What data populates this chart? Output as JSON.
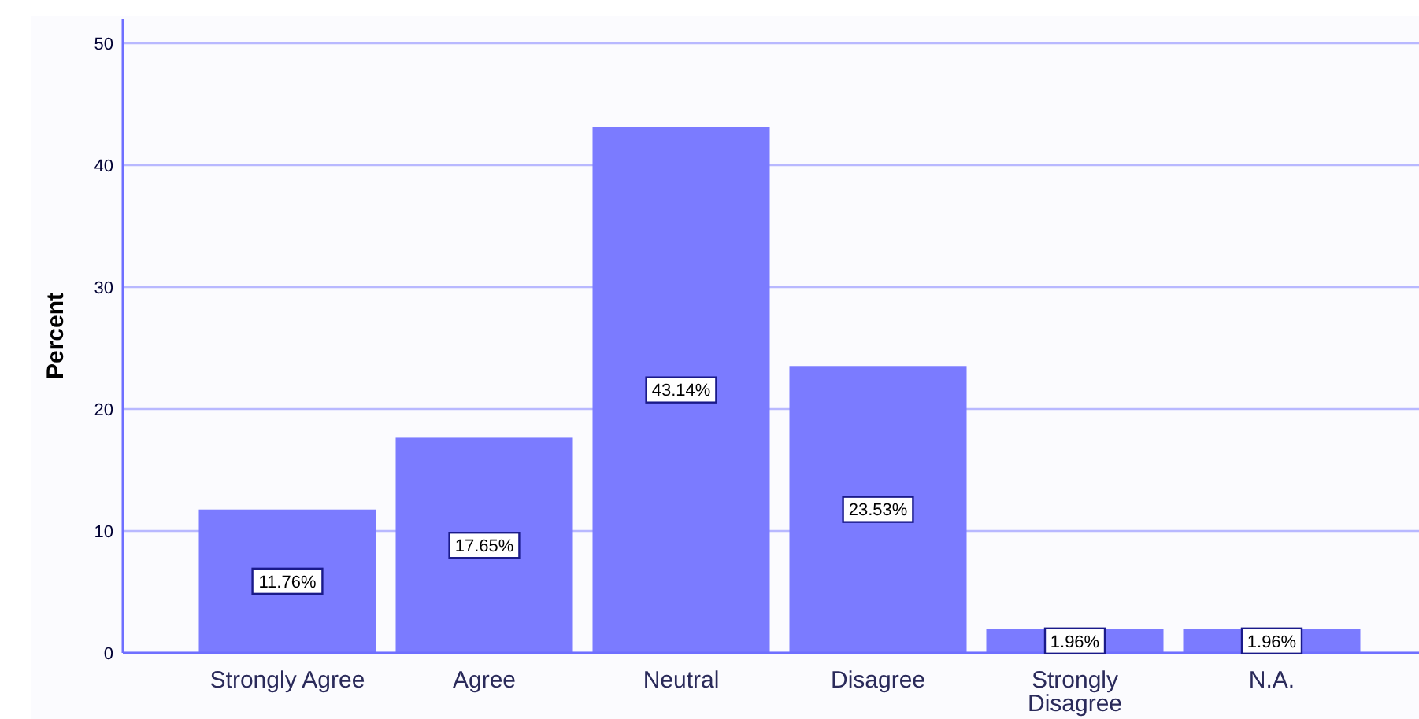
{
  "chart_data": {
    "type": "bar",
    "ylabel": "Percent",
    "categories": [
      "Strongly Agree",
      "Agree",
      "Neutral",
      "Disagree",
      "Strongly Disagree",
      "N.A."
    ],
    "values": [
      11.76,
      17.65,
      43.14,
      23.53,
      1.96,
      1.96
    ],
    "value_labels": [
      "11.76%",
      "17.65%",
      "43.14%",
      "23.53%",
      "1.96%",
      "1.96%"
    ],
    "color": "#7b7bff",
    "ylim": [
      0,
      52
    ],
    "yticks": [
      0,
      10,
      20,
      30,
      40,
      50
    ],
    "grid": "y"
  }
}
